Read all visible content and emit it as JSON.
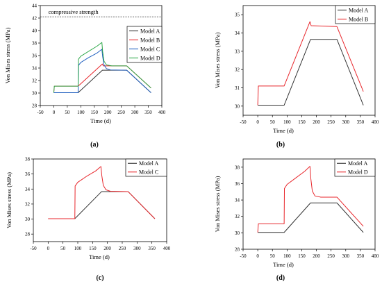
{
  "chart_data": [
    {
      "type": "line",
      "panel_label": "(a)",
      "xlabel": "Time (d)",
      "ylabel": "Von Mises stress (MPa)",
      "xlim": [
        -50,
        400
      ],
      "ylim": [
        28,
        44
      ],
      "xticks": [
        -50,
        0,
        50,
        100,
        150,
        200,
        250,
        300,
        350,
        400
      ],
      "yticks": [
        28,
        30,
        32,
        34,
        36,
        38,
        40,
        42,
        44
      ],
      "legend_position": "top-right",
      "reference_line": {
        "y": 42.2,
        "label": "compressive strength",
        "style": "dashed"
      },
      "series": [
        {
          "name": "Model A",
          "color": "#333333",
          "points": [
            [
              0,
              30.05
            ],
            [
              90,
              30.05
            ],
            [
              180,
              33.65
            ],
            [
              270,
              33.65
            ],
            [
              360,
              30.05
            ]
          ]
        },
        {
          "name": "Model B",
          "color": "#e8262b",
          "points": [
            [
              0,
              30.05
            ],
            [
              2,
              31.1
            ],
            [
              90,
              31.1
            ],
            [
              180,
              34.65
            ],
            [
              183,
              34.35
            ],
            [
              270,
              34.35
            ],
            [
              360,
              30.8
            ]
          ]
        },
        {
          "name": "Model C",
          "color": "#1f5fbf",
          "points": [
            [
              0,
              30.05
            ],
            [
              90,
              30.05
            ],
            [
              91,
              34.4
            ],
            [
              100,
              34.9
            ],
            [
              130,
              35.7
            ],
            [
              160,
              36.4
            ],
            [
              178,
              37.0
            ],
            [
              181,
              35.8
            ],
            [
              186,
              34.5
            ],
            [
              195,
              33.9
            ],
            [
              210,
              33.7
            ],
            [
              270,
              33.65
            ],
            [
              360,
              30.05
            ]
          ]
        },
        {
          "name": "Model D",
          "color": "#2ea84a",
          "points": [
            [
              0,
              30.05
            ],
            [
              2,
              31.1
            ],
            [
              90,
              31.1
            ],
            [
              91,
              35.4
            ],
            [
              100,
              35.9
            ],
            [
              130,
              36.7
            ],
            [
              160,
              37.5
            ],
            [
              178,
              38.1
            ],
            [
              181,
              36.6
            ],
            [
              186,
              35.1
            ],
            [
              195,
              34.5
            ],
            [
              215,
              34.35
            ],
            [
              270,
              34.35
            ],
            [
              360,
              30.8
            ]
          ]
        }
      ]
    },
    {
      "type": "line",
      "panel_label": "(b)",
      "xlabel": "Time (d)",
      "ylabel": "Von Mises stress (MPa)",
      "xlim": [
        -50,
        400
      ],
      "ylim": [
        29.5,
        35.5
      ],
      "xticks": [
        -50,
        0,
        50,
        100,
        150,
        200,
        250,
        300,
        350,
        400
      ],
      "yticks": [
        30,
        31,
        32,
        33,
        34,
        35
      ],
      "legend_position": "top-right",
      "series": [
        {
          "name": "Model A",
          "color": "#333333",
          "points": [
            [
              0,
              30.05
            ],
            [
              90,
              30.05
            ],
            [
              180,
              33.65
            ],
            [
              270,
              33.65
            ],
            [
              360,
              30.05
            ]
          ]
        },
        {
          "name": "Model B",
          "color": "#e8262b",
          "points": [
            [
              0,
              30.05
            ],
            [
              2,
              31.1
            ],
            [
              90,
              31.1
            ],
            [
              178,
              34.62
            ],
            [
              182,
              34.4
            ],
            [
              270,
              34.35
            ],
            [
              360,
              30.8
            ]
          ]
        }
      ]
    },
    {
      "type": "line",
      "panel_label": "(c)",
      "xlabel": "Time (d)",
      "ylabel": "Von Mises stress (MPa)",
      "xlim": [
        -50,
        400
      ],
      "ylim": [
        27,
        38
      ],
      "xticks": [
        -50,
        0,
        50,
        100,
        150,
        200,
        250,
        300,
        350,
        400
      ],
      "yticks": [
        28,
        30,
        32,
        34,
        36,
        38
      ],
      "legend_position": "top-right",
      "series": [
        {
          "name": "Model A",
          "color": "#333333",
          "points": [
            [
              0,
              30.05
            ],
            [
              90,
              30.05
            ],
            [
              180,
              33.65
            ],
            [
              270,
              33.65
            ],
            [
              360,
              30.05
            ]
          ]
        },
        {
          "name": "Model C",
          "color": "#e8262b",
          "points": [
            [
              0,
              30.05
            ],
            [
              90,
              30.05
            ],
            [
              91,
              34.4
            ],
            [
              100,
              34.9
            ],
            [
              130,
              35.7
            ],
            [
              160,
              36.4
            ],
            [
              178,
              37.0
            ],
            [
              181,
              35.8
            ],
            [
              186,
              34.5
            ],
            [
              195,
              33.9
            ],
            [
              210,
              33.7
            ],
            [
              270,
              33.65
            ],
            [
              360,
              30.05
            ]
          ]
        }
      ]
    },
    {
      "type": "line",
      "panel_label": "(d)",
      "xlabel": "Time (d)",
      "ylabel": "Von Mises stress (MPa)",
      "xlim": [
        -50,
        400
      ],
      "ylim": [
        28,
        39
      ],
      "xticks": [
        -50,
        0,
        50,
        100,
        150,
        200,
        250,
        300,
        350,
        400
      ],
      "yticks": [
        28,
        30,
        32,
        34,
        36,
        38
      ],
      "legend_position": "top-right",
      "series": [
        {
          "name": "Model A",
          "color": "#333333",
          "points": [
            [
              0,
              30.05
            ],
            [
              90,
              30.05
            ],
            [
              180,
              33.65
            ],
            [
              270,
              33.65
            ],
            [
              360,
              30.05
            ]
          ]
        },
        {
          "name": "Model D",
          "color": "#e8262b",
          "points": [
            [
              0,
              30.05
            ],
            [
              2,
              31.1
            ],
            [
              90,
              31.1
            ],
            [
              91,
              35.4
            ],
            [
              100,
              35.9
            ],
            [
              130,
              36.7
            ],
            [
              160,
              37.5
            ],
            [
              178,
              38.1
            ],
            [
              181,
              36.6
            ],
            [
              186,
              35.1
            ],
            [
              195,
              34.5
            ],
            [
              215,
              34.35
            ],
            [
              270,
              34.35
            ],
            [
              360,
              30.8
            ]
          ]
        }
      ]
    }
  ]
}
